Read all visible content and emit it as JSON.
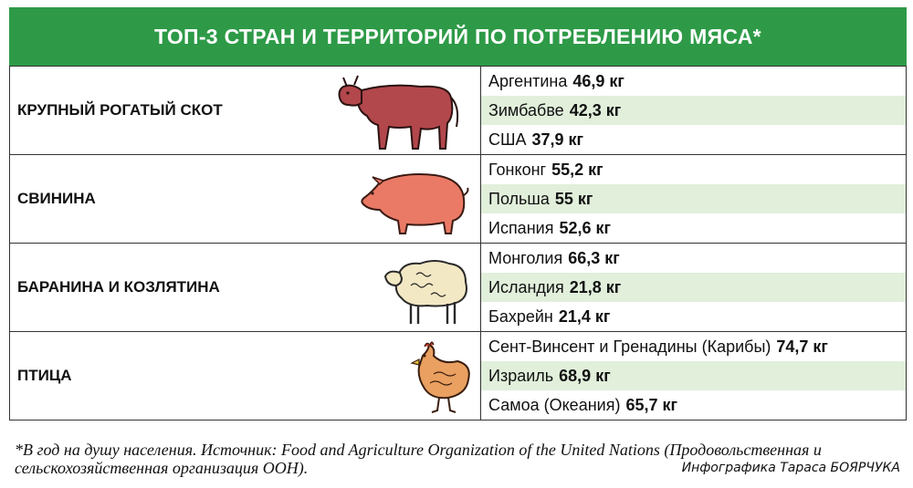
{
  "title": "ТОП-3 СТРАН И ТЕРРИТОРИЙ ПО ПОТРЕБЛЕНИЮ МЯСА*",
  "chart_data": {
    "type": "table",
    "title": "ТОП-3 СТРАН И ТЕРРИТОРИЙ ПО ПОТРЕБЛЕНИЮ МЯСА*",
    "unit": "кг",
    "groups": [
      {
        "category": "КРУПНЫЙ РОГАТЫЙ СКОТ",
        "icon": "cow-icon",
        "color": "#b2474c",
        "rows": [
          {
            "country": "Аргентина",
            "value": 46.9,
            "label": "46,9 кг"
          },
          {
            "country": "Зимбабве",
            "value": 42.3,
            "label": "42,3 кг"
          },
          {
            "country": "США",
            "value": 37.9,
            "label": "37,9 кг"
          }
        ]
      },
      {
        "category": "СВИНИНА",
        "icon": "pig-icon",
        "color": "#ea7a66",
        "rows": [
          {
            "country": "Гонконг",
            "value": 55.2,
            "label": "55,2 кг"
          },
          {
            "country": "Польша",
            "value": 55,
            "label": "55 кг"
          },
          {
            "country": "Испания",
            "value": 52.6,
            "label": "52,6 кг"
          }
        ]
      },
      {
        "category": "БАРАНИНА И КОЗЛЯТИНА",
        "icon": "sheep-icon",
        "color": "#f3e8c4",
        "rows": [
          {
            "country": "Монголия",
            "value": 66.3,
            "label": "66,3 кг"
          },
          {
            "country": "Исландия",
            "value": 21.8,
            "label": "21,8 кг"
          },
          {
            "country": "Бахрейн",
            "value": 21.4,
            "label": "21,4 кг"
          }
        ]
      },
      {
        "category": "ПТИЦА",
        "icon": "chicken-icon",
        "color": "#e9a060",
        "rows": [
          {
            "country": "Сент-Винсент и Гренадины (Карибы)",
            "value": 74.7,
            "label": "74,7 кг"
          },
          {
            "country": "Израиль",
            "value": 68.9,
            "label": "68,9 кг"
          },
          {
            "country": "Самоа (Океания)",
            "value": 65.7,
            "label": "65,7 кг"
          }
        ]
      }
    ]
  },
  "footnote": "*В год на душу населения. Источник: Food and Agriculture Organization of the United Nations (Продовольственная и сельскохозяйственная организация ООН).",
  "credit": "Инфографика Тараса БОЯРЧУКА",
  "colors": {
    "header": "#2e9a47",
    "row_alt": "#e1efdb"
  }
}
